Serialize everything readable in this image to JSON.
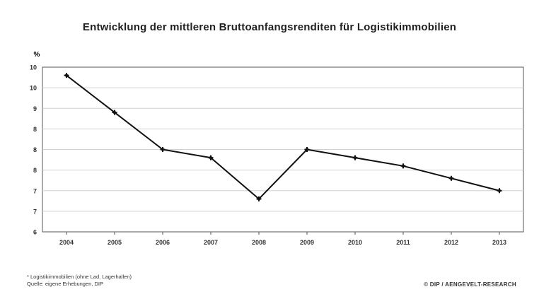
{
  "chart_data": {
    "type": "line",
    "title": "Entwicklung der mittleren Bruttoanfangsrenditen für Logistikimmobilien",
    "ylabel": "%",
    "y_ticks": [
      "6",
      "7",
      "7",
      "8",
      "8",
      "8",
      "9",
      "10",
      "10"
    ],
    "categories": [
      "2004",
      "2005",
      "2006",
      "2007",
      "2008",
      "2009",
      "2010",
      "2011",
      "2012",
      "2013"
    ],
    "series": [
      {
        "values": [
          9.8,
          8.9,
          8.0,
          7.8,
          6.8,
          8.0,
          7.8,
          7.6,
          7.3,
          7.0
        ]
      }
    ],
    "ylim": [
      6,
      10
    ],
    "grid": true,
    "colors": {
      "line": "#111111",
      "grid": "#d0d0d0",
      "axis": "#555555"
    }
  },
  "footnote": {
    "line1": "* Logistikimmobilien (ohne Lad. Lagerhallen)",
    "line2": "Quelle: eigene Erhebungen, DIP"
  },
  "copyright": "© DIP / AENGEVELT-RESEARCH"
}
